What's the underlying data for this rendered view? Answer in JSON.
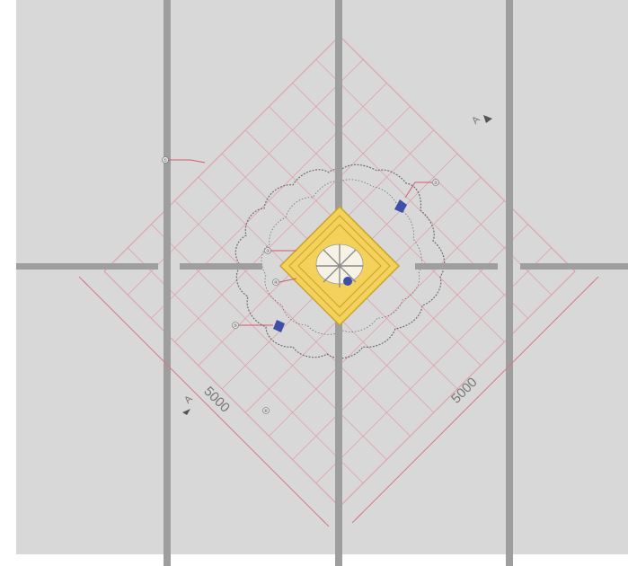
{
  "drawing": {
    "view": "plan",
    "colors": {
      "background": "#d8d8d8",
      "axis_lines": "#9e9e9e",
      "grid_lines": "#e09aa6",
      "dimension_lines": "#d77a88",
      "callout_leaders": "#d65a6a",
      "centerpiece_fill": "#f3d15a",
      "centerpiece_stroke": "#c9a229",
      "foliage_outline": "#6f6f6f",
      "marker_fill": "#3d4fa8"
    },
    "grid": {
      "divisions": 10
    },
    "dimensions": [
      {
        "label": "5000",
        "side": "lower-left"
      },
      {
        "label": "5000",
        "side": "lower-right"
      }
    ],
    "section_markers": [
      {
        "label": "A",
        "position": "top-right"
      },
      {
        "label": "A",
        "position": "bottom-left"
      }
    ],
    "callouts": [
      {
        "label": "①",
        "position": "upper-left"
      },
      {
        "label": "②",
        "position": "upper-right"
      },
      {
        "label": "③",
        "position": "center-left"
      },
      {
        "label": "④",
        "position": "center-left-lower"
      },
      {
        "label": "⑤",
        "position": "left"
      },
      {
        "label": "⑥",
        "position": "bottom-left"
      }
    ]
  }
}
